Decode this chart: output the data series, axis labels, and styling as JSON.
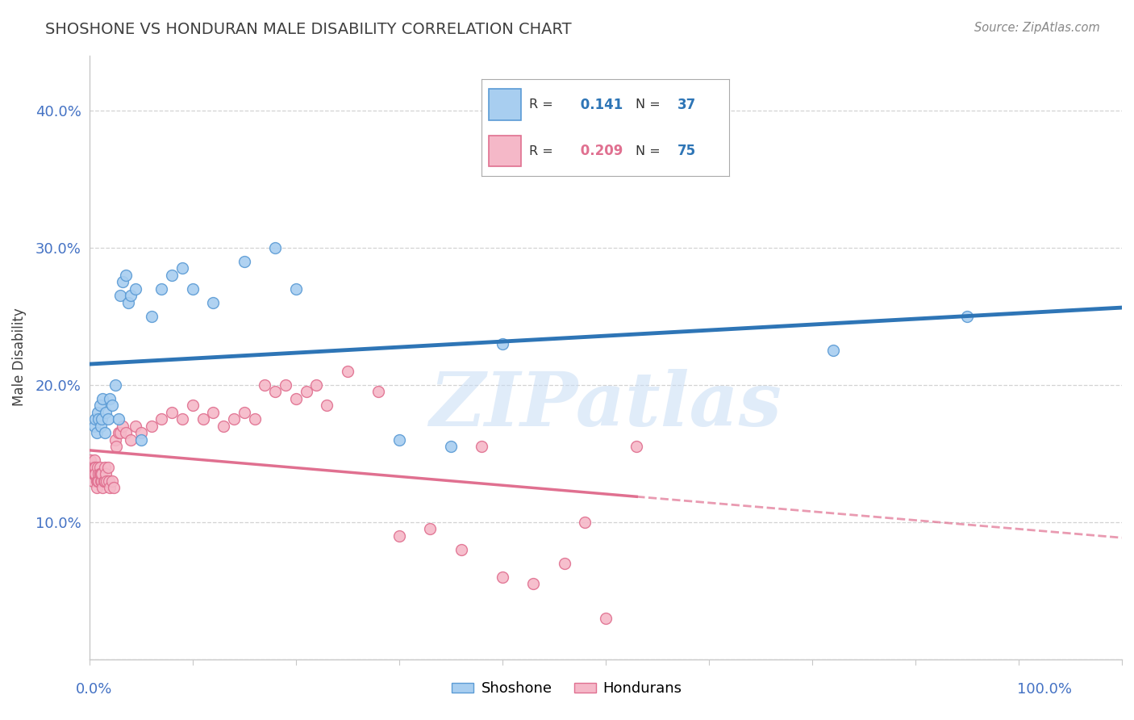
{
  "title": "SHOSHONE VS HONDURAN MALE DISABILITY CORRELATION CHART",
  "source": "Source: ZipAtlas.com",
  "ylabel": "Male Disability",
  "shoshone_color": "#A8CEF0",
  "honduran_color": "#F5B8C8",
  "shoshone_edge_color": "#5B9BD5",
  "honduran_edge_color": "#E07090",
  "shoshone_line_color": "#2E75B6",
  "honduran_line_color": "#E07090",
  "shoshone_R": 0.141,
  "shoshone_N": 37,
  "honduran_R": 0.209,
  "honduran_N": 75,
  "tick_color": "#4472C4",
  "title_color": "#404040",
  "source_color": "#888888",
  "grid_color": "#C8C8C8",
  "background_color": "#FFFFFF",
  "watermark": "ZIPatlas",
  "xlim": [
    0.0,
    1.0
  ],
  "ylim": [
    0.0,
    0.44
  ],
  "y_ticks": [
    0.0,
    0.1,
    0.2,
    0.3,
    0.4
  ],
  "y_tick_labels": [
    "",
    "10.0%",
    "20.0%",
    "30.0%",
    "40.0%"
  ],
  "shoshone_x": [
    0.005,
    0.006,
    0.007,
    0.008,
    0.009,
    0.01,
    0.011,
    0.012,
    0.013,
    0.015,
    0.016,
    0.018,
    0.02,
    0.022,
    0.025,
    0.028,
    0.03,
    0.032,
    0.035,
    0.038,
    0.04,
    0.045,
    0.05,
    0.06,
    0.07,
    0.08,
    0.09,
    0.1,
    0.12,
    0.15,
    0.18,
    0.2,
    0.3,
    0.35,
    0.4,
    0.72,
    0.85
  ],
  "shoshone_y": [
    0.17,
    0.175,
    0.165,
    0.18,
    0.175,
    0.185,
    0.17,
    0.175,
    0.19,
    0.165,
    0.18,
    0.175,
    0.19,
    0.185,
    0.2,
    0.175,
    0.265,
    0.275,
    0.28,
    0.26,
    0.265,
    0.27,
    0.16,
    0.25,
    0.27,
    0.28,
    0.285,
    0.27,
    0.26,
    0.29,
    0.3,
    0.27,
    0.16,
    0.155,
    0.23,
    0.225,
    0.25
  ],
  "honduran_x": [
    0.001,
    0.002,
    0.002,
    0.003,
    0.003,
    0.003,
    0.004,
    0.004,
    0.005,
    0.005,
    0.005,
    0.006,
    0.006,
    0.007,
    0.007,
    0.008,
    0.008,
    0.009,
    0.009,
    0.01,
    0.01,
    0.011,
    0.011,
    0.012,
    0.012,
    0.013,
    0.014,
    0.015,
    0.015,
    0.016,
    0.017,
    0.018,
    0.019,
    0.02,
    0.022,
    0.024,
    0.025,
    0.026,
    0.028,
    0.03,
    0.032,
    0.035,
    0.04,
    0.045,
    0.05,
    0.06,
    0.07,
    0.08,
    0.09,
    0.1,
    0.11,
    0.12,
    0.13,
    0.14,
    0.15,
    0.16,
    0.17,
    0.18,
    0.19,
    0.2,
    0.21,
    0.22,
    0.23,
    0.25,
    0.28,
    0.3,
    0.33,
    0.36,
    0.38,
    0.4,
    0.43,
    0.46,
    0.48,
    0.5,
    0.53
  ],
  "honduran_y": [
    0.145,
    0.14,
    0.135,
    0.14,
    0.135,
    0.13,
    0.14,
    0.135,
    0.145,
    0.14,
    0.135,
    0.14,
    0.135,
    0.13,
    0.125,
    0.14,
    0.13,
    0.135,
    0.13,
    0.14,
    0.135,
    0.13,
    0.135,
    0.13,
    0.135,
    0.125,
    0.13,
    0.14,
    0.13,
    0.135,
    0.13,
    0.14,
    0.13,
    0.125,
    0.13,
    0.125,
    0.16,
    0.155,
    0.165,
    0.165,
    0.17,
    0.165,
    0.16,
    0.17,
    0.165,
    0.17,
    0.175,
    0.18,
    0.175,
    0.185,
    0.175,
    0.18,
    0.17,
    0.175,
    0.18,
    0.175,
    0.2,
    0.195,
    0.2,
    0.19,
    0.195,
    0.2,
    0.185,
    0.21,
    0.195,
    0.09,
    0.095,
    0.08,
    0.155,
    0.06,
    0.055,
    0.07,
    0.1,
    0.03,
    0.155
  ]
}
